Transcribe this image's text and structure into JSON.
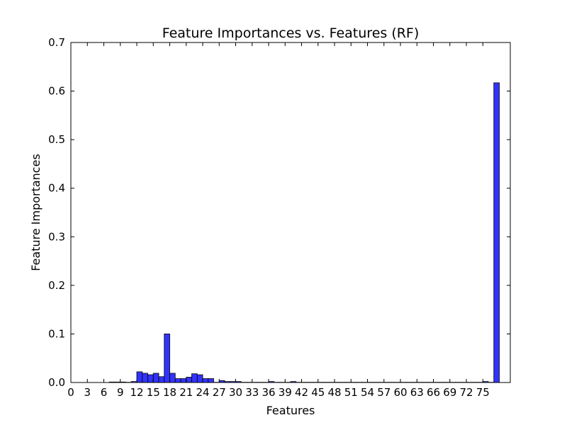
{
  "chart_data": {
    "type": "bar",
    "title": "Feature Importances vs. Features (RF)",
    "xlabel": "Features",
    "ylabel": "Feature Importances",
    "xlim": [
      0,
      80
    ],
    "ylim": [
      0,
      0.7
    ],
    "x_ticks": [
      0,
      3,
      6,
      9,
      12,
      15,
      18,
      21,
      24,
      27,
      30,
      33,
      36,
      39,
      42,
      45,
      48,
      51,
      54,
      57,
      60,
      63,
      66,
      69,
      72,
      75
    ],
    "y_ticks": [
      0.0,
      0.1,
      0.2,
      0.3,
      0.4,
      0.5,
      0.6,
      0.7
    ],
    "y_tick_labels": [
      "0.0",
      "0.1",
      "0.2",
      "0.3",
      "0.4",
      "0.5",
      "0.6",
      "0.7"
    ],
    "bar_color": "#3333ff",
    "bar_edge_color": "#000000",
    "grid": false,
    "legend": "none",
    "x": [
      0,
      1,
      2,
      3,
      4,
      5,
      6,
      7,
      8,
      9,
      10,
      11,
      12,
      13,
      14,
      15,
      16,
      17,
      18,
      19,
      20,
      21,
      22,
      23,
      24,
      25,
      26,
      27,
      28,
      29,
      30,
      31,
      32,
      33,
      34,
      35,
      36,
      37,
      38,
      39,
      40,
      41,
      42,
      43,
      44,
      45,
      46,
      47,
      48,
      49,
      50,
      51,
      52,
      53,
      54,
      55,
      56,
      57,
      58,
      59,
      60,
      61,
      62,
      63,
      64,
      65,
      66,
      67,
      68,
      69,
      70,
      71,
      72,
      73,
      74,
      75,
      76,
      77
    ],
    "values": [
      0,
      0,
      0,
      0,
      0,
      0,
      0,
      0.001,
      0.001,
      0.001,
      0.0005,
      0.002,
      0.022,
      0.019,
      0.016,
      0.019,
      0.012,
      0.1,
      0.019,
      0.008,
      0.008,
      0.011,
      0.018,
      0.016,
      0.008,
      0.008,
      0.0005,
      0.004,
      0.002,
      0.002,
      0.002,
      0.0005,
      0.0005,
      0.0005,
      0.0005,
      0.0005,
      0.002,
      0.0005,
      0.0005,
      0.0005,
      0.002,
      0.0005,
      0.0005,
      0.0005,
      0.0005,
      0.0005,
      0.0005,
      0.0005,
      0.0005,
      0.0005,
      0.0005,
      0.0005,
      0.0005,
      0.0005,
      0.0005,
      0.0005,
      0.0005,
      0.0005,
      0.0005,
      0.0005,
      0.0005,
      0.0005,
      0.0005,
      0.0005,
      0.0005,
      0.0005,
      0.0005,
      0.0005,
      0.0005,
      0.0005,
      0.0005,
      0.0005,
      0.0005,
      0.0005,
      0.0005,
      0.002,
      0.0005,
      0.617
    ]
  }
}
